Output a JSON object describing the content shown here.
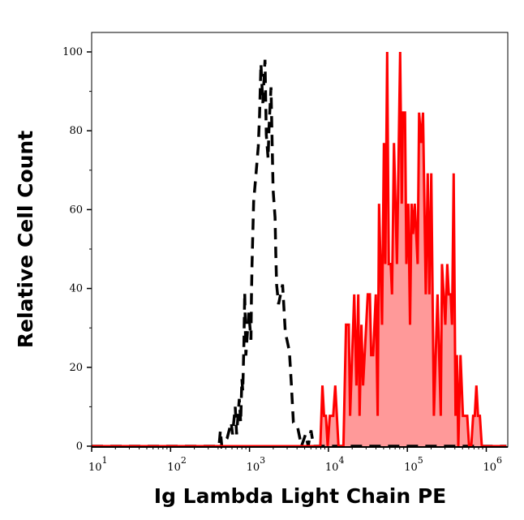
{
  "chart_data": {
    "type": "area",
    "title": "",
    "xlabel": "Ig Lambda Light Chain PE",
    "ylabel": "Relative Cell Count",
    "xscale": "log",
    "xlim": [
      10,
      1800000
    ],
    "ylim": [
      0,
      102
    ],
    "xticks": [
      {
        "base": "10",
        "exp": "1",
        "value": 10
      },
      {
        "base": "10",
        "exp": "2",
        "value": 100
      },
      {
        "base": "10",
        "exp": "3",
        "value": 1000
      },
      {
        "base": "10",
        "exp": "4",
        "value": 10000
      },
      {
        "base": "10",
        "exp": "5",
        "value": 100000
      },
      {
        "base": "10",
        "exp": "6",
        "value": 1000000
      }
    ],
    "yticks": [
      "0",
      "20",
      "40",
      "60",
      "80",
      "100"
    ],
    "grid": false,
    "legend": "none",
    "series": [
      {
        "style": "dashed line",
        "color": "#000000",
        "points": [
          [
            10,
            0
          ],
          [
            411,
            0
          ],
          [
            428,
            4
          ],
          [
            445,
            0
          ],
          [
            521,
            2
          ],
          [
            586,
            6
          ],
          [
            610,
            3
          ],
          [
            660,
            10
          ],
          [
            686,
            3
          ],
          [
            742,
            12
          ],
          [
            772,
            6
          ],
          [
            800,
            17
          ],
          [
            822,
            14
          ],
          [
            849,
            26
          ],
          [
            869,
            39
          ],
          [
            900,
            23
          ],
          [
            979,
            34
          ],
          [
            1043,
            27
          ],
          [
            1059,
            38
          ],
          [
            1076,
            46
          ],
          [
            1102,
            54
          ],
          [
            1128,
            62
          ],
          [
            1221,
            70
          ],
          [
            1290,
            76
          ],
          [
            1341,
            84
          ],
          [
            1396,
            97
          ],
          [
            1475,
            87
          ],
          [
            1571,
            98
          ],
          [
            1633,
            79
          ],
          [
            1720,
            73
          ],
          [
            1770,
            81
          ],
          [
            1871,
            91
          ],
          [
            1992,
            65
          ],
          [
            2105,
            58
          ],
          [
            2155,
            49
          ],
          [
            2205,
            41
          ],
          [
            2332,
            36
          ],
          [
            2626,
            41
          ],
          [
            2840,
            29
          ],
          [
            3200,
            24
          ],
          [
            3380,
            16
          ],
          [
            3600,
            6
          ],
          [
            4050,
            5
          ],
          [
            4560,
            0
          ],
          [
            5130,
            3
          ],
          [
            5550,
            0
          ],
          [
            6010,
            4
          ],
          [
            6500,
            0
          ],
          [
            1800000,
            0
          ]
        ]
      },
      {
        "style": "filled solid line",
        "color": "#ff0000",
        "fill": "#ff9999",
        "points": [
          [
            10,
            0
          ],
          [
            7900,
            0
          ],
          [
            8400,
            15.4
          ],
          [
            8800,
            7.7
          ],
          [
            9300,
            7.7
          ],
          [
            9800,
            0
          ],
          [
            10400,
            7.7
          ],
          [
            11500,
            7.7
          ],
          [
            12200,
            15.4
          ],
          [
            13400,
            0
          ],
          [
            15500,
            0
          ],
          [
            16700,
            30.8
          ],
          [
            18100,
            30.8
          ],
          [
            18800,
            7.7
          ],
          [
            21200,
            38.5
          ],
          [
            22600,
            15.4
          ],
          [
            23900,
            38.5
          ],
          [
            24800,
            7.7
          ],
          [
            26200,
            30.8
          ],
          [
            27500,
            15.4
          ],
          [
            31500,
            38.5
          ],
          [
            33500,
            38.5
          ],
          [
            34800,
            23.1
          ],
          [
            36800,
            23.1
          ],
          [
            39800,
            38.5
          ],
          [
            42100,
            7.7
          ],
          [
            43800,
            61.5
          ],
          [
            47800,
            30.8
          ],
          [
            50500,
            76.9
          ],
          [
            52500,
            46.2
          ],
          [
            55500,
            100
          ],
          [
            58200,
            46.2
          ],
          [
            61500,
            46.2
          ],
          [
            64000,
            38.5
          ],
          [
            67600,
            76.9
          ],
          [
            73800,
            46.2
          ],
          [
            81100,
            100
          ],
          [
            85000,
            61.5
          ],
          [
            87700,
            84.6
          ],
          [
            93300,
            84.6
          ],
          [
            97200,
            46.2
          ],
          [
            103000,
            61.5
          ],
          [
            108000,
            30.8
          ],
          [
            113000,
            61.5
          ],
          [
            118000,
            53.8
          ],
          [
            124000,
            61.5
          ],
          [
            135000,
            46.2
          ],
          [
            141000,
            84.6
          ],
          [
            150000,
            76.9
          ],
          [
            158000,
            84.6
          ],
          [
            171000,
            38.5
          ],
          [
            181000,
            69.2
          ],
          [
            190000,
            38.5
          ],
          [
            201000,
            69.2
          ],
          [
            217000,
            7.7
          ],
          [
            241000,
            38.5
          ],
          [
            265000,
            7.7
          ],
          [
            275000,
            46.2
          ],
          [
            303000,
            30.8
          ],
          [
            320000,
            46.2
          ],
          [
            335000,
            38.5
          ],
          [
            354000,
            38.5
          ],
          [
            368000,
            30.8
          ],
          [
            386000,
            69.2
          ],
          [
            408000,
            7.7
          ],
          [
            425000,
            23.1
          ],
          [
            442000,
            0
          ],
          [
            471000,
            23.1
          ],
          [
            506000,
            7.7
          ],
          [
            573000,
            7.7
          ],
          [
            606000,
            0
          ],
          [
            645000,
            0
          ],
          [
            682000,
            7.7
          ],
          [
            715000,
            7.7
          ],
          [
            750000,
            15.4
          ],
          [
            786000,
            7.7
          ],
          [
            830000,
            7.7
          ],
          [
            878000,
            0
          ],
          [
            1800000,
            0
          ]
        ]
      }
    ]
  }
}
